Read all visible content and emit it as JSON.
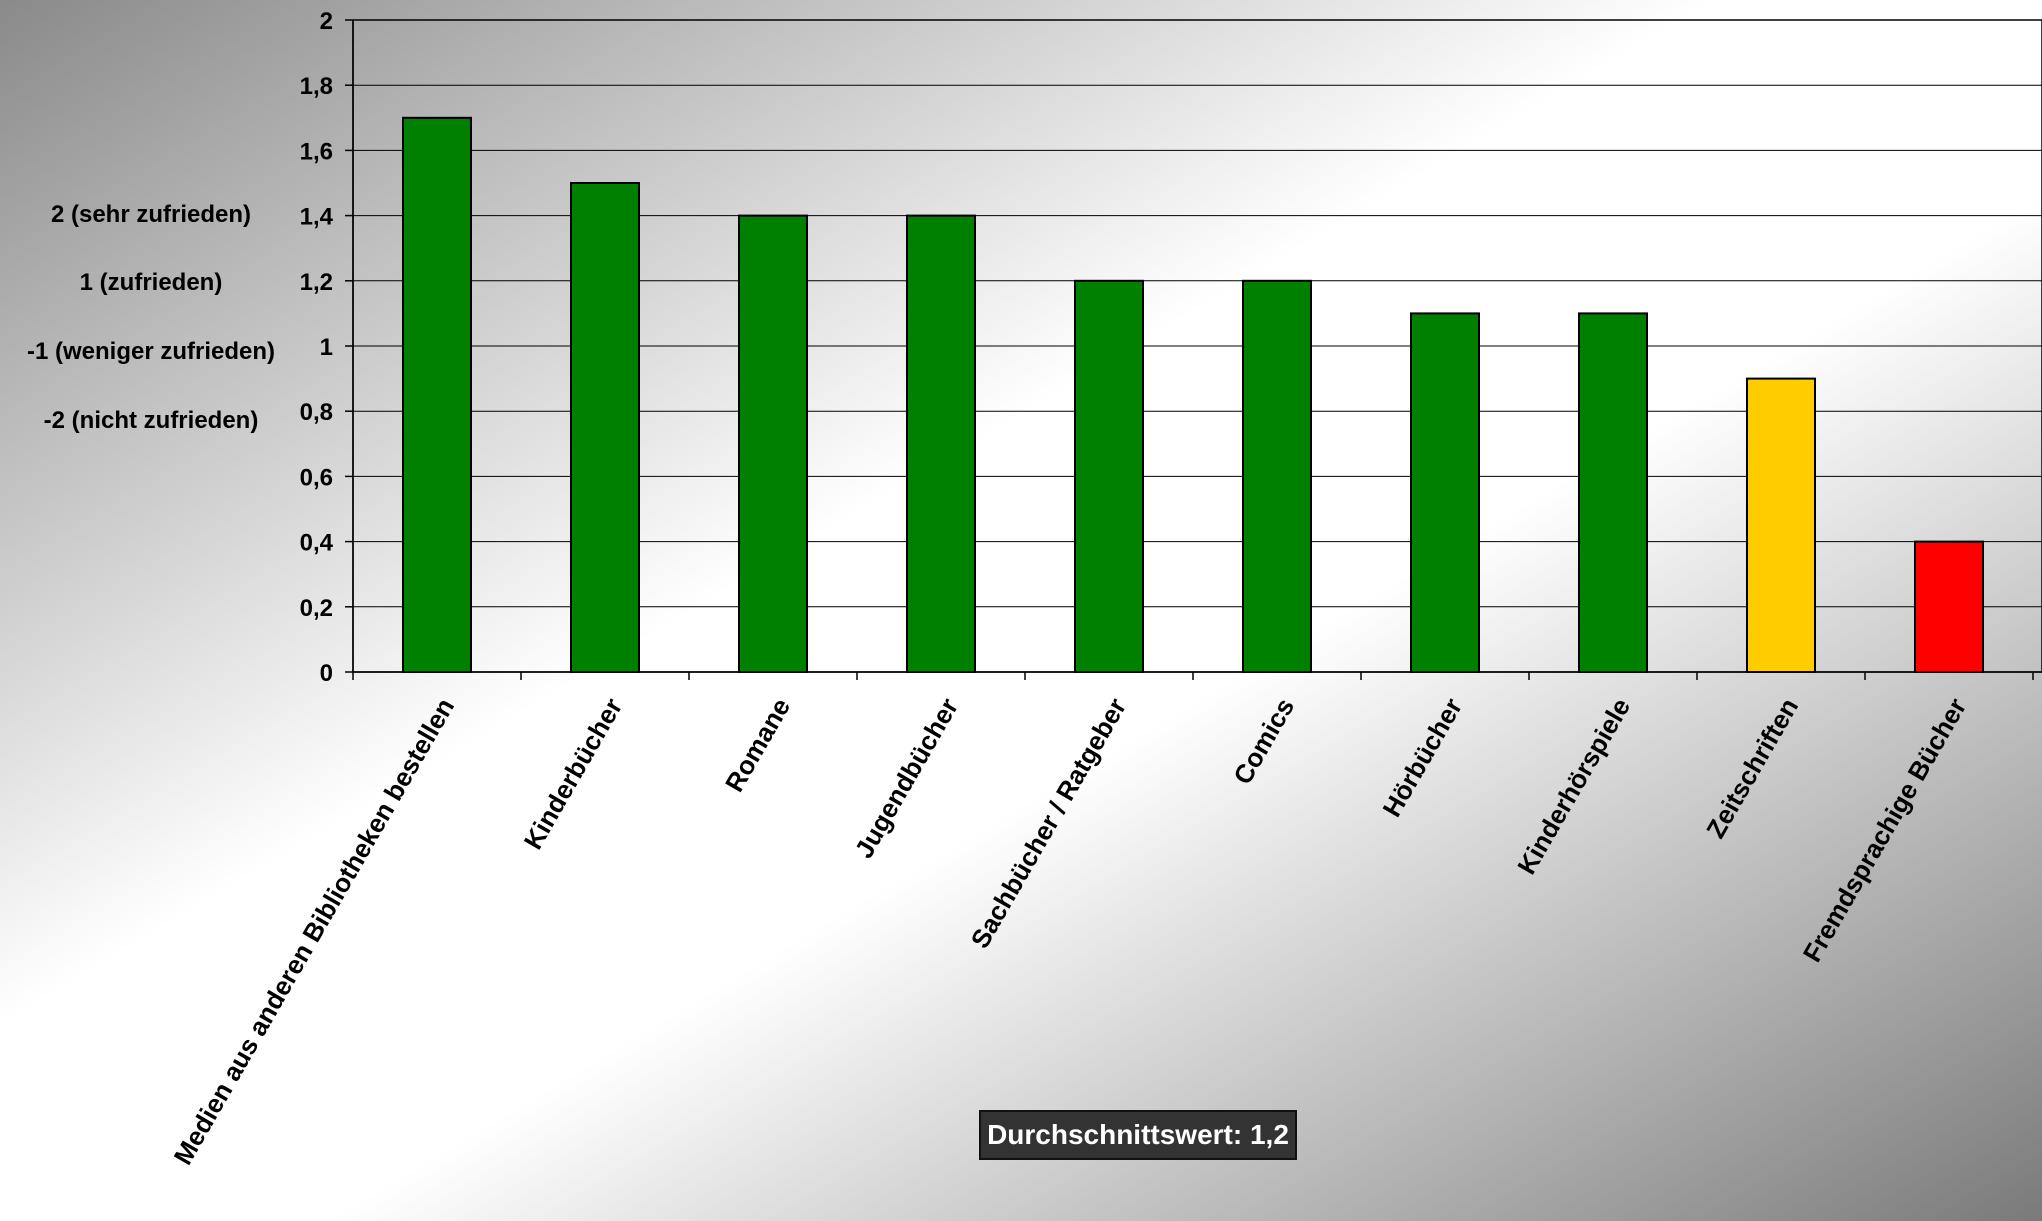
{
  "scale_legend": [
    "2 (sehr zufrieden)",
    "1 (zufrieden)",
    "-1 (weniger zufrieden)",
    "-2 (nicht zufrieden)"
  ],
  "average_label": "Durchschnittswert: 1,2",
  "colors": {
    "green": "#008000",
    "yellow": "#ffcc00",
    "red": "#ff0000",
    "gridline": "#000000",
    "average_box": "#333333"
  },
  "chart_data": {
    "type": "bar",
    "title": "",
    "xlabel": "",
    "ylabel": "",
    "ylim": [
      0,
      2
    ],
    "yticks": [
      0,
      0.2,
      0.4,
      0.6,
      0.8,
      1,
      1.2,
      1.4,
      1.6,
      1.8,
      2
    ],
    "ytick_labels": [
      "0",
      "0,2",
      "0,4",
      "0,6",
      "0,8",
      "1",
      "1,2",
      "1,4",
      "1,6",
      "1,8",
      "2"
    ],
    "grid": true,
    "categories": [
      "Medien aus anderen Bibliotheken bestellen",
      "Kinderbücher",
      "Romane",
      "Jugendbücher",
      "Sachbücher / Ratgeber",
      "Comics",
      "Hörbücher",
      "Kinderhörspiele",
      "Zeitschriften",
      "Fremdsprachige Bücher"
    ],
    "values": [
      1.7,
      1.5,
      1.4,
      1.4,
      1.2,
      1.2,
      1.1,
      1.1,
      0.9,
      0.4
    ],
    "bar_colors": [
      "green",
      "green",
      "green",
      "green",
      "green",
      "green",
      "green",
      "green",
      "yellow",
      "red"
    ]
  }
}
